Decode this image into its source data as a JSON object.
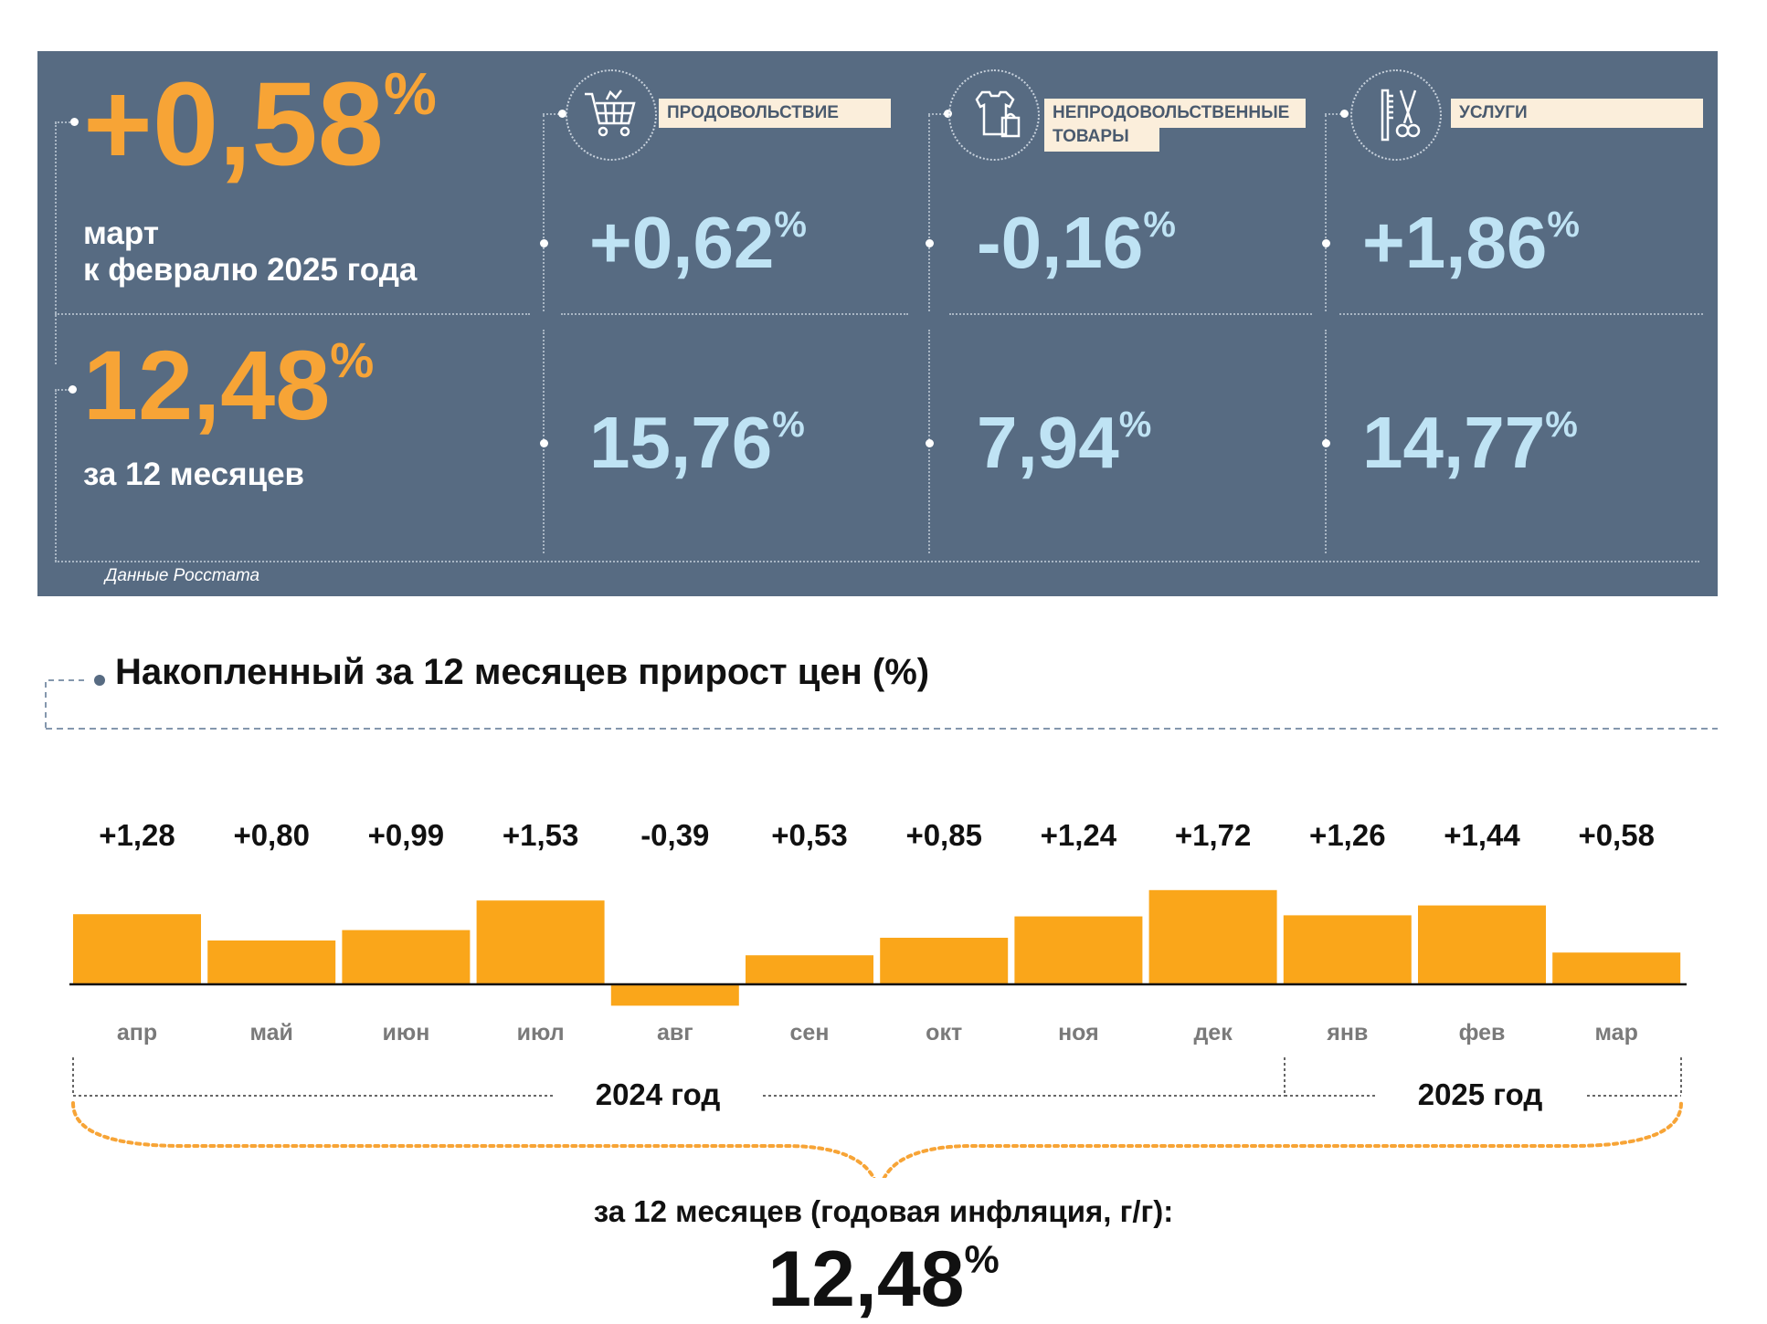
{
  "header": {
    "mom": {
      "value": "+0,58",
      "unit": "%",
      "caption_line1": "март",
      "caption_line2": "к февралю 2025 года"
    },
    "yoy": {
      "value": "12,48",
      "unit": "%",
      "caption": "за 12 месяцев"
    },
    "categories": [
      {
        "label": "ПРОДОВОЛЬСТВИЕ",
        "icon": "shopping-cart-icon",
        "mom": "+0,62",
        "yoy": "15,76",
        "unit": "%"
      },
      {
        "label_line1": "НЕПРОДОВОЛЬСТВЕННЫЕ",
        "label_line2": "ТОВАРЫ",
        "icon": "clothes-bag-icon",
        "mom": "-0,16",
        "yoy": "7,94",
        "unit": "%"
      },
      {
        "label": "УСЛУГИ",
        "icon": "comb-scissors-icon",
        "mom": "+1,86",
        "yoy": "14,77",
        "unit": "%"
      }
    ],
    "source": "Данные Росстата"
  },
  "colors": {
    "panel": "#576b82",
    "accent": "#f7a436",
    "value_light": "#bfe3f4",
    "bar": "#faa61a"
  },
  "chart_data": {
    "type": "bar",
    "title": "Накопленный за 12 месяцев прирост цен (%)",
    "categories": [
      "апр",
      "май",
      "июн",
      "июл",
      "авг",
      "сен",
      "окт",
      "ноя",
      "дек",
      "янв",
      "фев",
      "мар"
    ],
    "values": [
      1.28,
      0.8,
      0.99,
      1.53,
      -0.39,
      0.53,
      0.85,
      1.24,
      1.72,
      1.26,
      1.44,
      0.58
    ],
    "value_labels": [
      "+1,28",
      "+0,80",
      "+0,99",
      "+1,53",
      "-0,39",
      "+0,53",
      "+0,85",
      "+1,24",
      "+1,72",
      "+1,26",
      "+1,44",
      "+0,58"
    ],
    "year_groups": [
      {
        "label": "2024 год",
        "from": "апр",
        "to": "дек"
      },
      {
        "label": "2025 год",
        "from": "янв",
        "to": "мар"
      }
    ],
    "summary_caption": "за 12 месяцев (годовая инфляция, г/г):",
    "summary_value": "12,48",
    "summary_unit": "%"
  }
}
